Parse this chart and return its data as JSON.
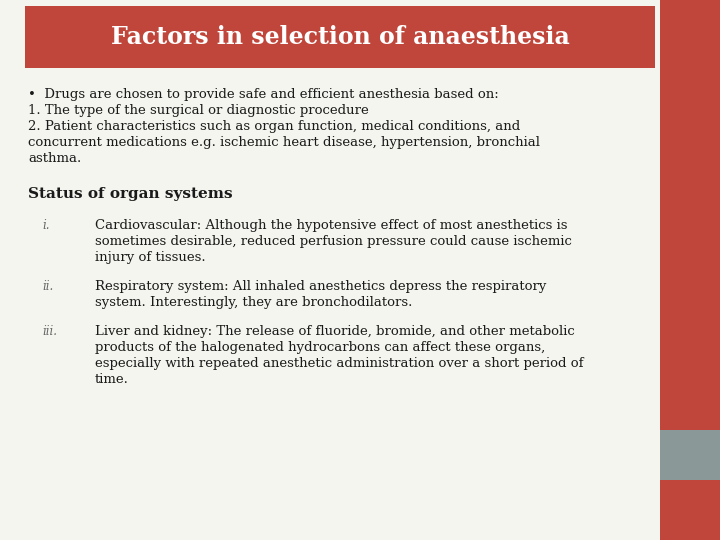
{
  "title": "Factors in selection of anaesthesia",
  "title_bg_color": "#c0453a",
  "title_text_color": "#ffffff",
  "slide_bg_color": "#f5f5f0",
  "right_bar_color": "#c0453a",
  "right_bar2_color": "#8a9898",
  "body_text_color": "#1a1a1a",
  "bullet_line": "•  Drugs are chosen to provide safe and efficient anesthesia based on:",
  "line1": "1. The type of the surgical or diagnostic procedure",
  "line2a": "2. Patient characteristics such as organ function, medical conditions, and",
  "line2b": "concurrent medications e.g. ischemic heart disease, hypertension, bronchial",
  "line2c": "asthma.",
  "subheading": "Status of organ systems",
  "items": [
    {
      "label": "i.",
      "lines": [
        "Cardiovascular: Although the hypotensive effect of most anesthetics is",
        "sometimes desirable, reduced perfusion pressure could cause ischemic",
        "injury of tissues."
      ]
    },
    {
      "label": "ii.",
      "lines": [
        "Respiratory system: All inhaled anesthetics depress the respiratory",
        "system. Interestingly, they are bronchodilators."
      ]
    },
    {
      "label": "iii.",
      "lines": [
        "Liver and kidney: The release of fluoride, bromide, and other metabolic",
        "products of the halogenated hydrocarbons can affect these organs,",
        "especially with repeated anesthetic administration over a short period of",
        "time."
      ]
    }
  ],
  "font_family": "serif",
  "title_fontsize": 17,
  "body_fontsize": 9.5,
  "subheading_fontsize": 11,
  "label_fontsize": 8.5
}
